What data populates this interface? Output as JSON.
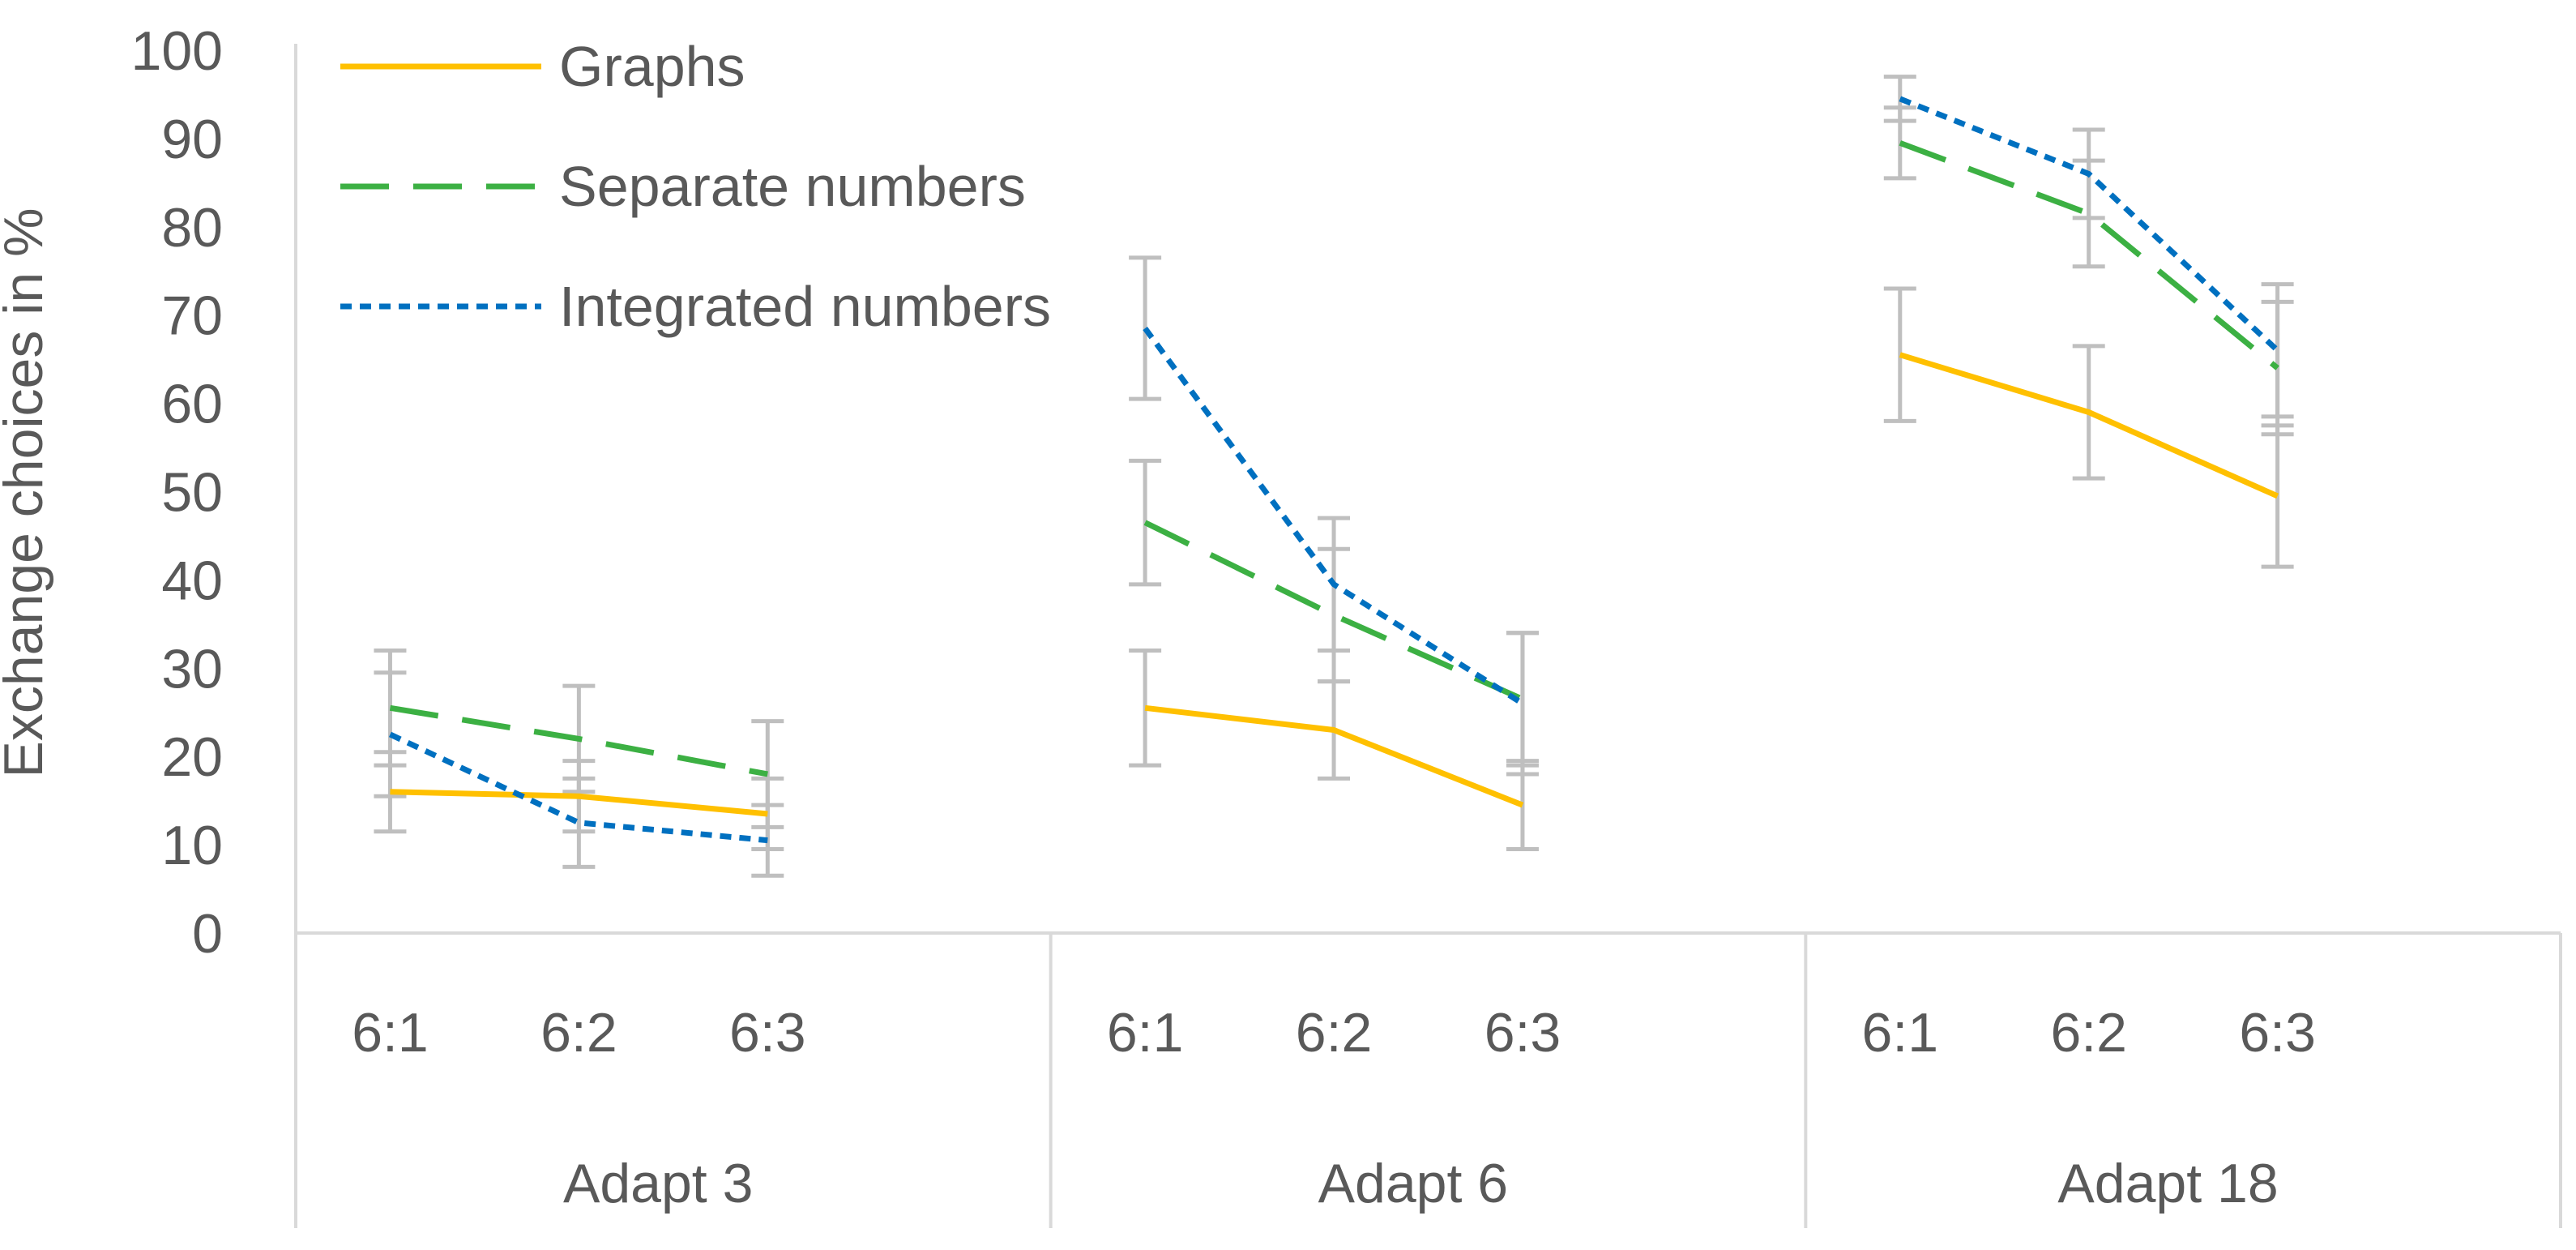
{
  "chart_data": {
    "type": "line",
    "title": "",
    "ylabel": "Exchange choices in %",
    "xlabel": "",
    "ylim": [
      0,
      100
    ],
    "yticks": [
      0,
      10,
      20,
      30,
      40,
      50,
      60,
      70,
      80,
      90,
      100
    ],
    "groups": [
      {
        "label": "Adapt 3",
        "categories": [
          "6:1",
          "6:2",
          "6:3"
        ]
      },
      {
        "label": "Adapt 6",
        "categories": [
          "6:1",
          "6:2",
          "6:3"
        ]
      },
      {
        "label": "Adapt 18",
        "categories": [
          "6:1",
          "6:2",
          "6:3"
        ]
      }
    ],
    "series": [
      {
        "name": "Graphs",
        "color": "#FFC000",
        "dash": "solid",
        "values": [
          [
            16,
            15.5,
            13.5
          ],
          [
            25.5,
            23,
            14.5
          ],
          [
            65.5,
            59,
            49.5
          ]
        ],
        "errors": [
          [
            4.5,
            4,
            4
          ],
          [
            6.5,
            5.5,
            5
          ],
          [
            7.5,
            7.5,
            8
          ]
        ]
      },
      {
        "name": "Separate numbers",
        "color": "#3CB043",
        "dash": "dash",
        "values": [
          [
            25.5,
            22,
            18
          ],
          [
            46.5,
            36,
            26.5
          ],
          [
            89.5,
            81.5,
            64
          ]
        ],
        "errors": [
          [
            6.5,
            6,
            6
          ],
          [
            7,
            7.5,
            7.5
          ],
          [
            4,
            6,
            7.5
          ]
        ]
      },
      {
        "name": "Integrated numbers",
        "color": "#0070C0",
        "dash": "dot",
        "values": [
          [
            22.5,
            12.5,
            10.5
          ],
          [
            68.5,
            39.5,
            26
          ],
          [
            94.5,
            86,
            66
          ]
        ],
        "errors": [
          [
            7,
            5,
            4
          ],
          [
            8,
            7.5,
            8
          ],
          [
            2.5,
            5,
            7.5
          ]
        ]
      }
    ],
    "legend_position": "top-left"
  }
}
